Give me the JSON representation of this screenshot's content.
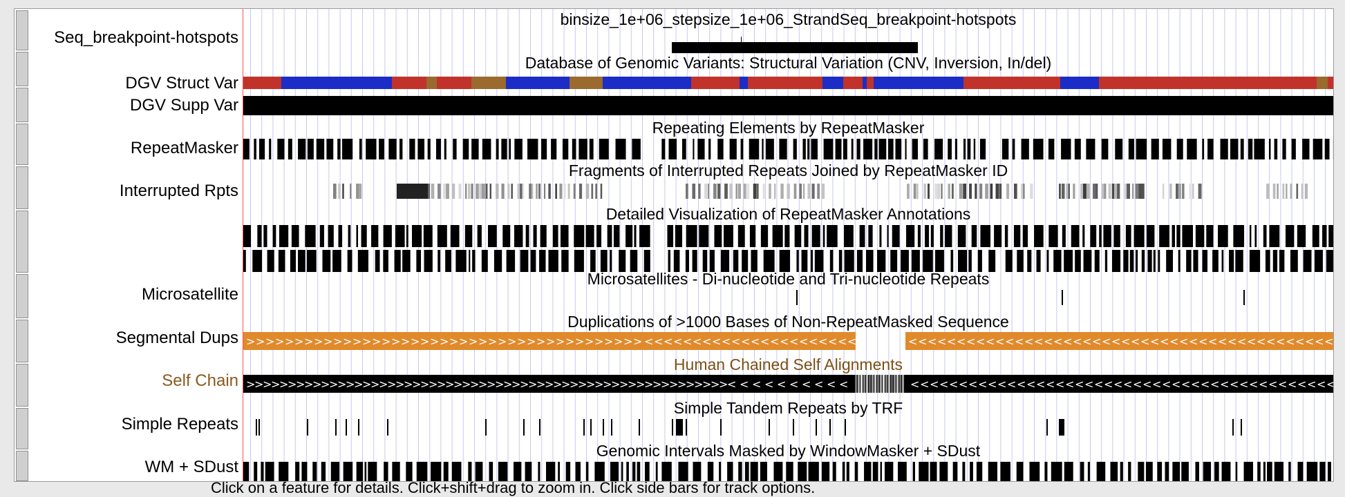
{
  "footer_hint": "Click on a feature for details. Click+shift+drag to zoom in. Click side bars for track options.",
  "colors": {
    "self_chain_label": "#8a5a1e",
    "self_chain_title": "#7d4f14",
    "segdup_orange": "#e08a2c",
    "dgv_red": "#c1322a",
    "dgv_blue": "#1b2dc6",
    "dgv_brown": "#9a6a2e",
    "grid_line": "#c8c8f0"
  },
  "tracks": [
    {
      "id": "hotspots",
      "label": "Seq_breakpoint-hotspots",
      "title": "binsize_1e+06_stepsize_1e+06_StrandSeq_breakpoint-hotspots"
    },
    {
      "id": "dgv-struct",
      "label": "DGV Struct Var",
      "title": "Database of Genomic Variants: Structural Variation (CNV, Inversion, In/del)"
    },
    {
      "id": "dgv-supp",
      "label": "DGV Supp Var",
      "title": ""
    },
    {
      "id": "repeatmasker",
      "label": "RepeatMasker",
      "title": "Repeating Elements by RepeatMasker"
    },
    {
      "id": "interrupted",
      "label": "Interrupted Rpts",
      "title": "Fragments of Interrupted Repeats Joined by RepeatMasker ID"
    },
    {
      "id": "rmsk-detailed",
      "label": "",
      "title": "Detailed Visualization of RepeatMasker Annotations"
    },
    {
      "id": "microsat",
      "label": "Microsatellite",
      "title": "Microsatellites - Di-nucleotide and Tri-nucleotide Repeats"
    },
    {
      "id": "segdups",
      "label": "Segmental Dups",
      "title": "Duplications of >1000 Bases of Non-RepeatMasked Sequence"
    },
    {
      "id": "selfchain",
      "label": "Self Chain",
      "title": "Human Chained Self Alignments"
    },
    {
      "id": "simple-repeats",
      "label": "Simple Repeats",
      "title": "Simple Tandem Repeats by TRF"
    },
    {
      "id": "wm-sdust",
      "label": "WM + SDust",
      "title": "Genomic Intervals Masked by WindowMasker + SDust"
    }
  ]
}
